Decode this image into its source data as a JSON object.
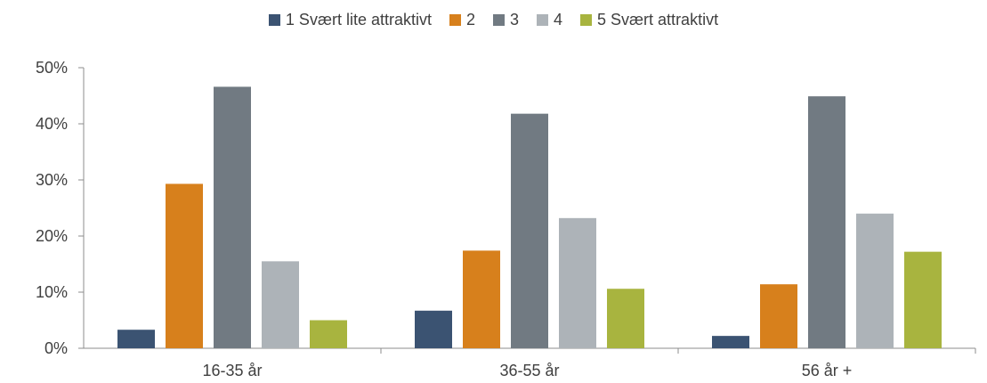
{
  "chart_data": {
    "type": "bar",
    "categories": [
      "16-35 år",
      "36-55 år",
      "56 år +"
    ],
    "series": [
      {
        "name": "1 Svært lite attraktivt",
        "color": "#3b5372",
        "values": [
          3.3,
          6.7,
          2.2
        ]
      },
      {
        "name": "2",
        "color": "#d7801c",
        "values": [
          29.3,
          17.4,
          11.4
        ]
      },
      {
        "name": "3",
        "color": "#717a82",
        "values": [
          46.6,
          41.8,
          44.9
        ]
      },
      {
        "name": "4",
        "color": "#adb3b8",
        "values": [
          15.5,
          23.2,
          24.0
        ]
      },
      {
        "name": "5 Svært attraktivt",
        "color": "#a8b43f",
        "values": [
          5.0,
          10.6,
          17.2
        ]
      }
    ],
    "yticks": [
      "0%",
      "10%",
      "20%",
      "30%",
      "40%",
      "50%"
    ],
    "ylim": [
      0,
      50
    ],
    "legend_position": "top-center",
    "grid": false
  }
}
